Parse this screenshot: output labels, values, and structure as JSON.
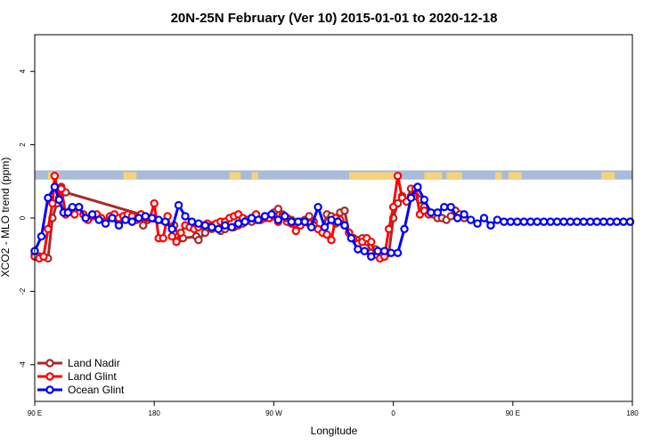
{
  "chart_data": {
    "type": "line",
    "title": "20N-25N February (Ver 10)   2015-01-01 to 2020-12-18",
    "xlabel": "Longitude",
    "ylabel": "XCO2 - MLO trend (ppm)",
    "xlim": [
      -90,
      180
    ],
    "ylim": [
      -5,
      5
    ],
    "x_ticks": [
      {
        "value": -90,
        "label": "90 E"
      },
      {
        "value": -36,
        "label": "180"
      },
      {
        "value": 18,
        "label": "90 W"
      },
      {
        "value": 72,
        "label": "0"
      },
      {
        "value": 126,
        "label": "90 E"
      },
      {
        "value": 180,
        "label": "180"
      }
    ],
    "y_ticks": [
      -4,
      -2,
      0,
      2,
      4
    ],
    "grid": false,
    "legend_position": "bottom-left",
    "colors": {
      "land_nadir": "#a52a2a",
      "land_glint": "#ff0000",
      "ocean_glint": "#0000ff",
      "map_ocean": "#a8bbd8",
      "map_land": "#f5d37a"
    },
    "map_strip": {
      "y_range": [
        1.05,
        1.3
      ]
    },
    "series": [
      {
        "name": "Land Nadir",
        "color": "#a52a2a",
        "x": [
          -90,
          -88,
          -84,
          -82,
          -80,
          -78,
          -76,
          -42,
          -41,
          -39,
          -27,
          -25,
          -24,
          -23,
          -17,
          -16,
          -13,
          -12,
          -11,
          -10,
          -7,
          -6,
          -4,
          0,
          2,
          4,
          8,
          10,
          12,
          14,
          16,
          18,
          20,
          22,
          24,
          26,
          28,
          30,
          32,
          34,
          36,
          38,
          40,
          42,
          44,
          46,
          48,
          50,
          52,
          54,
          56,
          58,
          60,
          62,
          64,
          66,
          68,
          70,
          72,
          74,
          76,
          78,
          80,
          82,
          84,
          86,
          88,
          90,
          92,
          94,
          96,
          98,
          100,
          102,
          104
        ],
        "values": [
          -1.0,
          -1.05,
          -1.1,
          0.0,
          0.4,
          0.85,
          0.7,
          0.1,
          -0.2,
          -0.05,
          -0.2,
          -0.5,
          -0.55,
          -0.55,
          -0.5,
          -0.6,
          -0.4,
          -0.25,
          -0.2,
          -0.3,
          -0.3,
          -0.35,
          -0.3,
          -0.25,
          -0.2,
          -0.15,
          -0.1,
          -0.05,
          -0.05,
          0.05,
          0.0,
          0.15,
          0.25,
          0.1,
          -0.1,
          -0.05,
          -0.15,
          -0.1,
          -0.05,
          0.05,
          -0.1,
          -0.3,
          -0.35,
          0.1,
          0.05,
          -0.15,
          0.15,
          0.2,
          -0.4,
          -0.55,
          -0.6,
          -0.55,
          -0.65,
          -0.95,
          -0.85,
          -1.0,
          -1.05,
          -0.95,
          0.0,
          0.4,
          0.6,
          0.45,
          0.8,
          0.6,
          0.5,
          0.3,
          0.15,
          0.1,
          0.0,
          0.0,
          -0.05,
          0.05,
          0.2,
          0.1,
          0.0
        ]
      },
      {
        "name": "Land Glint",
        "color": "#ff0000",
        "x": [
          -90,
          -88,
          -86,
          -84,
          -82,
          -81,
          -79,
          -78,
          -76,
          -74,
          -72,
          -70,
          -68,
          -66,
          -64,
          -62,
          -60,
          -58,
          -56,
          -54,
          -52,
          -50,
          -48,
          -46,
          -44,
          -42,
          -40,
          -38,
          -36,
          -34,
          -32,
          -30,
          -28,
          -26,
          -24,
          -22,
          -20,
          -18,
          -16,
          -14,
          -12,
          -10,
          -8,
          -6,
          -4,
          -2,
          0,
          2,
          4,
          6,
          8,
          10,
          12,
          14,
          16,
          18,
          20,
          22,
          24,
          26,
          28,
          30,
          32,
          34,
          36,
          38,
          40,
          42,
          44,
          46,
          48,
          50,
          52,
          54,
          56,
          58,
          60,
          62,
          64,
          66,
          68,
          70,
          72,
          74,
          76,
          78,
          80,
          82,
          84,
          86,
          88
        ],
        "values": [
          -1.05,
          -1.1,
          -1.05,
          -0.3,
          0.4,
          1.15,
          0.55,
          0.8,
          0.1,
          0.2,
          0.1,
          0.3,
          0.1,
          -0.05,
          0.05,
          0.1,
          0.0,
          -0.1,
          0.05,
          0.1,
          0.0,
          0.05,
          0.1,
          0.05,
          -0.05,
          0.1,
          0.0,
          0.0,
          0.4,
          -0.55,
          -0.55,
          0.05,
          -0.5,
          -0.65,
          -0.4,
          -0.2,
          -0.25,
          -0.3,
          -0.25,
          -0.2,
          -0.15,
          -0.2,
          -0.15,
          -0.1,
          -0.1,
          0.0,
          0.05,
          0.1,
          0.0,
          -0.05,
          0.0,
          0.1,
          -0.05,
          0.0,
          0.0,
          0.05,
          -0.1,
          0.05,
          0.0,
          -0.15,
          -0.35,
          -0.2,
          -0.1,
          -0.15,
          -0.2,
          -0.3,
          -0.4,
          -0.45,
          -0.6,
          0.0,
          -0.05,
          -0.2,
          -0.4,
          -0.55,
          -0.7,
          -0.65,
          -0.55,
          -0.65,
          -1.0,
          -1.1,
          -1.05,
          -0.3,
          0.3,
          1.15,
          0.55,
          0.45,
          0.6,
          0.8,
          0.1,
          0.2,
          0.1
        ]
      },
      {
        "name": "Ocean Glint",
        "color": "#0000ff",
        "x": [
          -90,
          -87,
          -84,
          -81,
          -79,
          -77,
          -75,
          -73,
          -70,
          -67,
          -64,
          -61,
          -58,
          -55,
          -52,
          -49,
          -46,
          -43,
          -40,
          -37,
          -34,
          -31,
          -28,
          -25,
          -22,
          -19,
          -16,
          -13,
          -10,
          -7,
          -4,
          -1,
          2,
          5,
          8,
          11,
          14,
          17,
          20,
          23,
          26,
          29,
          32,
          35,
          38,
          41,
          44,
          47,
          50,
          53,
          56,
          59,
          62,
          65,
          68,
          71,
          74,
          77,
          80,
          83,
          86,
          89,
          92,
          95,
          98,
          101,
          104,
          107,
          110,
          113,
          116,
          119,
          122,
          125,
          128,
          131,
          134,
          137,
          140,
          143,
          146,
          149,
          152,
          155,
          158,
          161,
          164,
          167,
          170,
          173,
          176,
          179
        ],
        "values": [
          -0.9,
          -0.5,
          0.55,
          0.85,
          0.5,
          0.15,
          0.15,
          0.3,
          0.3,
          0.0,
          0.1,
          -0.05,
          -0.15,
          0.0,
          -0.2,
          -0.05,
          -0.1,
          0.0,
          0.05,
          0.0,
          -0.05,
          -0.1,
          -0.3,
          0.35,
          0.05,
          -0.1,
          -0.15,
          -0.2,
          -0.25,
          -0.3,
          -0.2,
          -0.25,
          -0.15,
          -0.1,
          0.0,
          -0.05,
          0.05,
          0.1,
          -0.05,
          0.05,
          -0.1,
          -0.1,
          -0.1,
          -0.25,
          0.3,
          -0.25,
          -0.05,
          -0.1,
          -0.2,
          -0.55,
          -0.85,
          -0.9,
          -1.05,
          -0.9,
          -0.9,
          -0.95,
          -0.95,
          -0.3,
          0.55,
          0.85,
          0.5,
          0.15,
          0.15,
          0.3,
          0.3,
          0.0,
          0.1,
          -0.05,
          -0.15,
          0.0,
          -0.2,
          -0.05,
          -0.1,
          -0.1,
          -0.1,
          -0.1,
          -0.1,
          -0.1,
          -0.1,
          -0.1,
          -0.1,
          -0.1,
          -0.1,
          -0.1,
          -0.1,
          -0.1,
          -0.1,
          -0.1,
          -0.1,
          -0.1,
          -0.1,
          -0.1
        ]
      }
    ]
  }
}
